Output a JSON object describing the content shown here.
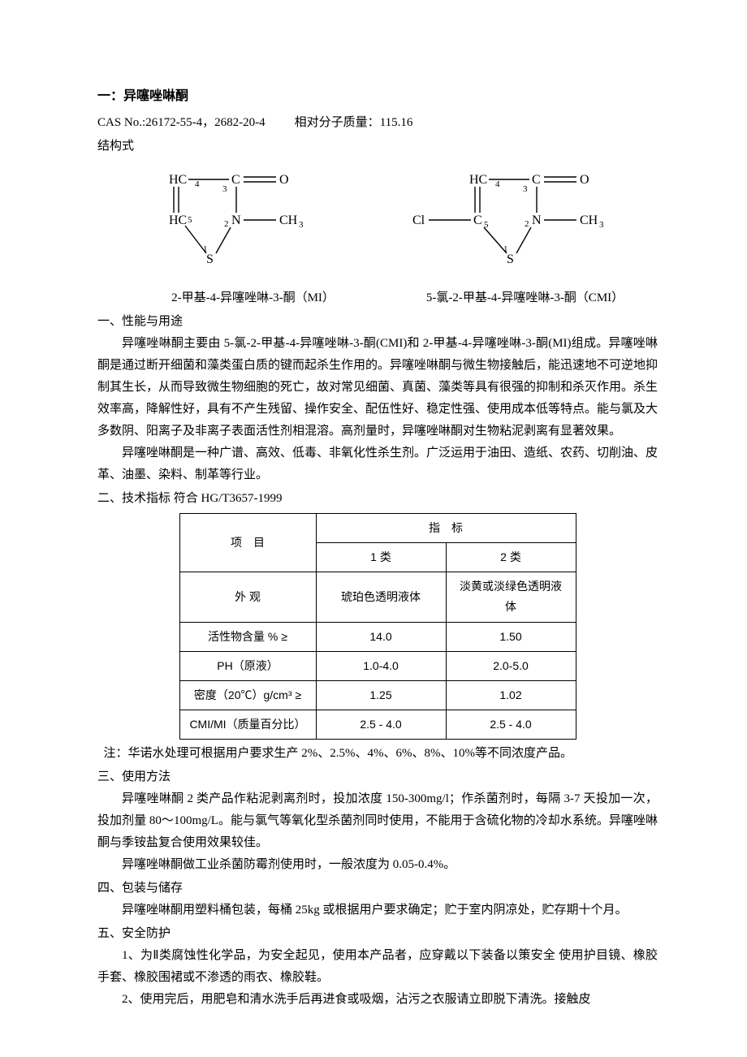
{
  "title": "一：异噻唑啉酮",
  "meta": {
    "cas_label": "CAS No.:",
    "cas_value": "26172-55-4，2682-20-4",
    "mw_label": "相对分子质量：",
    "mw_value": "115.16",
    "structure_label": "结构式"
  },
  "structures": {
    "left_caption": "2-甲基-4-异噻唑啉-3-酮（MI）",
    "right_caption": "5-氯-2-甲基-4-异噻唑啉-3-酮（CMI）",
    "atoms": {
      "HC_top": "HC",
      "HC_bottom": "HC",
      "Cl": "Cl",
      "C_top": "C",
      "C_bottom": "C",
      "O": "O",
      "N": "N",
      "S": "S",
      "CH3": "CH",
      "sub3": "3",
      "n1": "1",
      "n2": "2",
      "n3": "3",
      "n4": "4",
      "n5": "5"
    }
  },
  "sec1": {
    "head": "一、性能与用途",
    "p1": "异噻唑啉酮主要由 5-氯-2-甲基-4-异噻唑啉-3-酮(CMI)和 2-甲基-4-异噻唑啉-3-酮(MI)组成。异噻唑啉酮是通过断开细菌和藻类蛋白质的键而起杀生作用的。异噻唑啉酮与微生物接触后，能迅速地不可逆地抑制其生长，从而导致微生物细胞的死亡，故对常见细菌、真菌、藻类等具有很强的抑制和杀灭作用。杀生效率高，降解性好，具有不产生残留、操作安全、配伍性好、稳定性强、使用成本低等特点。能与氯及大多数阴、阳离子及非离子表面活性剂相混溶。高剂量时，异噻唑啉酮对生物粘泥剥离有显著效果。",
    "p2": "异噻唑啉酮是一种广谱、高效、低毒、非氧化性杀生剂。广泛运用于油田、造纸、农药、切削油、皮革、油墨、染料、制革等行业。"
  },
  "sec2": {
    "head": "二、技术指标 符合 HG/T3657-1999",
    "table": {
      "col_item": "项　目",
      "col_spec": "指　标",
      "class1": "1 类",
      "class2": "2 类",
      "rows": [
        {
          "item": "外  观",
          "c1": "琥珀色透明液体",
          "c2": "淡黄或淡绿色透明液体"
        },
        {
          "item": "活性物含量  %  ≥",
          "c1": "14.0",
          "c2": "1.50"
        },
        {
          "item": "PH（原液）",
          "c1": "1.0-4.0",
          "c2": "2.0-5.0"
        },
        {
          "item": "密度（20℃）g/cm³ ≥",
          "c1": "1.25",
          "c2": "1.02"
        },
        {
          "item": "CMI/MI（质量百分比）",
          "c1": "2.5 - 4.0",
          "c2": "2.5 - 4.0"
        }
      ]
    },
    "note": "注：华诺水处理可根据用户要求生产 2%、2.5%、4%、6%、8%、10%等不同浓度产品。"
  },
  "sec3": {
    "head": "三、使用方法",
    "p1": "异噻唑啉酮 2 类产品作粘泥剥离剂时，投加浓度 150-300mg/l；作杀菌剂时，每隔 3-7 天投加一次，投加剂量 80～100mg/L。能与氯气等氧化型杀菌剂同时使用，不能用于含硫化物的冷却水系统。异噻唑啉酮与季铵盐复合使用效果较佳。",
    "p2": "异噻唑啉酮做工业杀菌防霉剂使用时，一般浓度为 0.05-0.4%。"
  },
  "sec4": {
    "head": "四、包装与储存",
    "p1": "异噻唑啉酮用塑料桶包装，每桶 25kg 或根据用户要求确定；贮于室内阴凉处，贮存期十个月。"
  },
  "sec5": {
    "head": "五、安全防护",
    "p1": "1、为Ⅱ类腐蚀性化学品，为安全起见，使用本产品者，应穿戴以下装备以策安全 使用护目镜、橡胶手套、橡胶围裙或不渗透的雨衣、橡胶鞋。",
    "p2": "2、使用完后，用肥皂和清水洗手后再进食或吸烟，沾污之衣服请立即脱下清洗。接触皮"
  }
}
